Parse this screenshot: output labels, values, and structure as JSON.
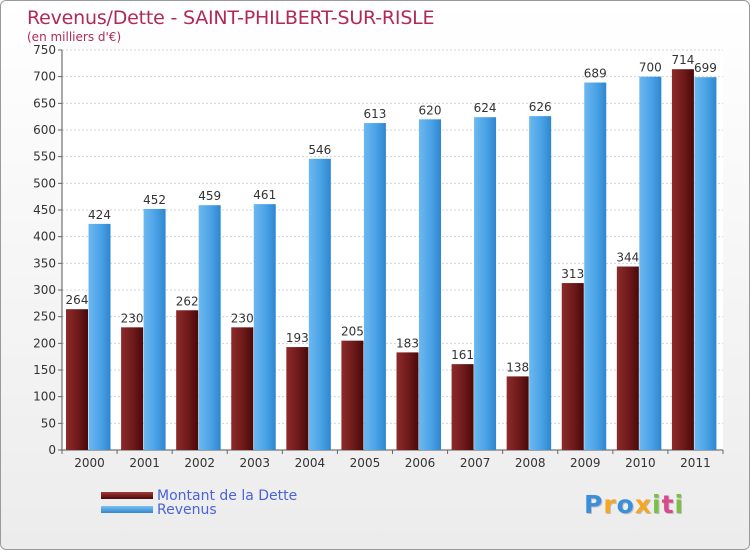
{
  "chart_data": {
    "type": "bar",
    "title": "Revenus/Dette - SAINT-PHILBERT-SUR-RISLE",
    "subtitle": "(en milliers d'€)",
    "categories": [
      "2000",
      "2001",
      "2002",
      "2003",
      "2004",
      "2005",
      "2006",
      "2007",
      "2008",
      "2009",
      "2010",
      "2011"
    ],
    "series": [
      {
        "name": "Montant de la Dette",
        "color": "#7a1f1f",
        "values": [
          264,
          230,
          262,
          230,
          193,
          205,
          183,
          161,
          138,
          313,
          344,
          714
        ]
      },
      {
        "name": "Revenus",
        "color": "#4da6e8",
        "values": [
          424,
          452,
          459,
          461,
          546,
          613,
          620,
          624,
          626,
          689,
          700,
          699
        ]
      }
    ],
    "ylim": [
      0,
      750
    ],
    "yticks": [
      0,
      50,
      100,
      150,
      200,
      250,
      300,
      350,
      400,
      450,
      500,
      550,
      600,
      650,
      700,
      750
    ],
    "grid": true,
    "legend_position": "bottom-left"
  },
  "legend": {
    "debt_label": "Montant de la Dette",
    "revenue_label": "Revenus"
  },
  "logo": {
    "letters": [
      "P",
      "r",
      "o",
      "x",
      "i",
      "t",
      "i"
    ],
    "colors": [
      "#3a8fd8",
      "#f5a623",
      "#3a8fd8",
      "#f5a623",
      "#7bc043",
      "#d94a8c",
      "#7bc043"
    ]
  }
}
